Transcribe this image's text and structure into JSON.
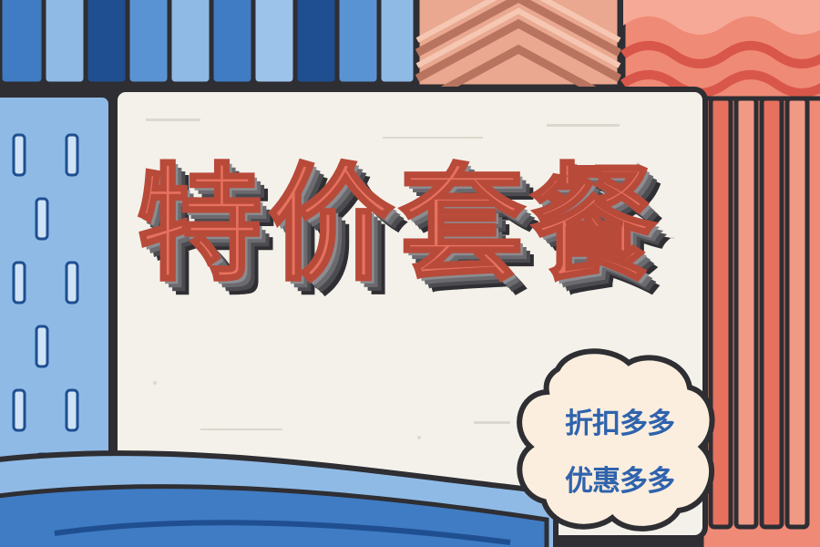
{
  "poster": {
    "title": "特价套餐",
    "tagline_1": "折扣多多",
    "tagline_2": "优惠多多"
  },
  "colors": {
    "background_panel": "#f4f1ea",
    "blue_light": "#8fbae6",
    "blue_mid": "#3f7cc4",
    "blue_dark": "#1f4f91",
    "salmon": "#e7715f",
    "peach": "#f2b49c",
    "outline": "#2e2e33",
    "tag_text": "#2f63ad"
  }
}
